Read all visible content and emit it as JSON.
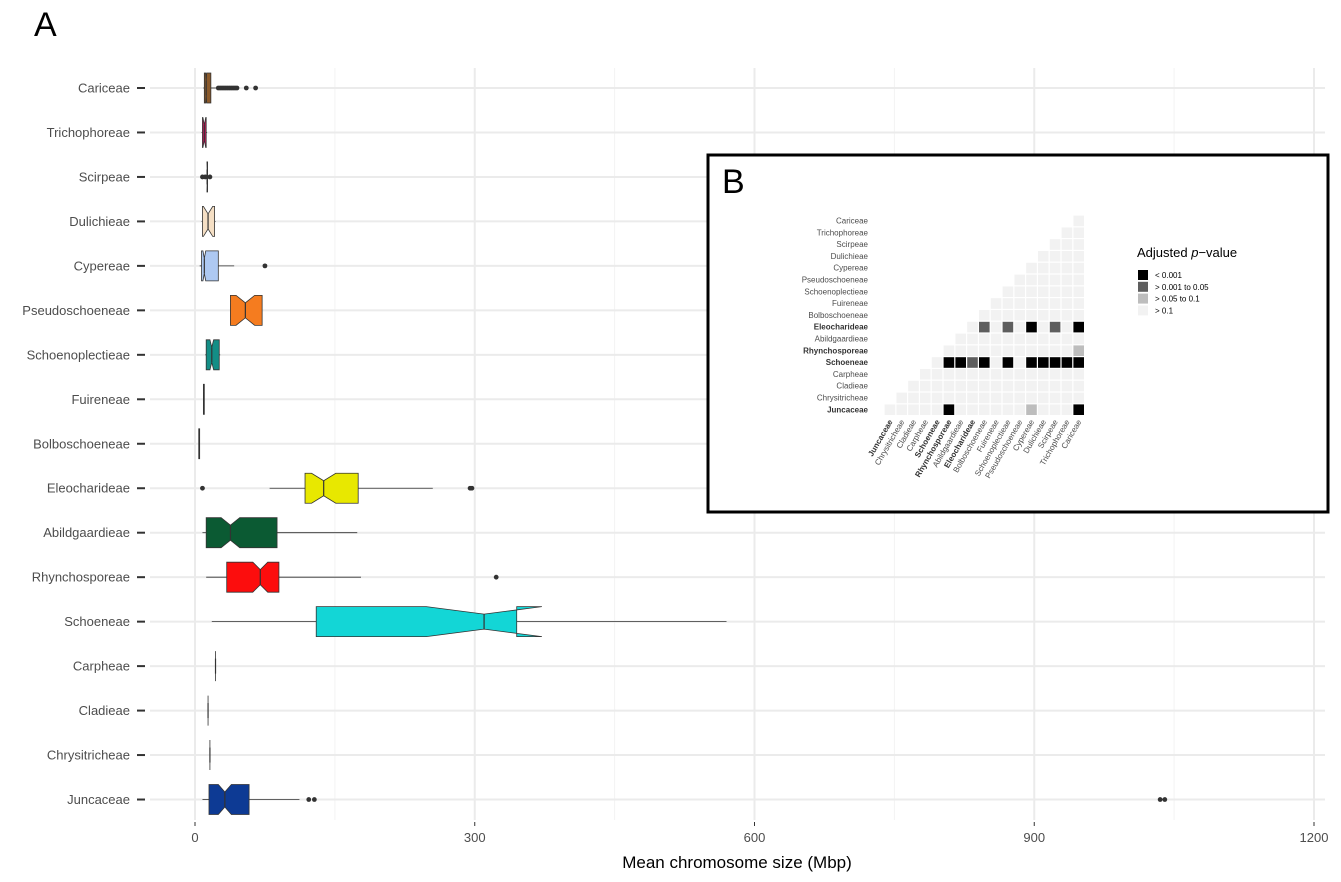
{
  "panel_a_label": "A",
  "panel_b_label": "B",
  "colors": {
    "grid": "#ebebeb",
    "sig_lt_0001": "#000000",
    "sig_0001_005": "#5e5e5e",
    "sig_005_01": "#bdbdbd",
    "sig_gt_01": "#f2f2f2"
  },
  "chart_data": [
    {
      "type": "boxplot",
      "orientation": "horizontal",
      "notched": true,
      "xlabel": "Mean chromosome size (Mbp)",
      "xlim": [
        0,
        1200
      ],
      "xticks": [
        0,
        300,
        600,
        900,
        1200
      ],
      "grid": true,
      "categories": [
        "Cariceae",
        "Trichophoreae",
        "Scirpeae",
        "Dulichieae",
        "Cypereae",
        "Pseudoschoeneae",
        "Schoenoplectieae",
        "Fuireneae",
        "Bolboschoeneae",
        "Eleocharideae",
        "Abildgaardieae",
        "Rhynchosporeae",
        "Schoeneae",
        "Carpheae",
        "Cladieae",
        "Chrysitricheae",
        "Juncaceae"
      ],
      "boxes": [
        {
          "name": "Cariceae",
          "color": "#8b5a2b",
          "min": 9,
          "q1": 10,
          "median": 12,
          "q3": 17,
          "max": 23,
          "notch": [
            11.5,
            12.5
          ],
          "outliers": [
            25,
            27,
            29,
            31,
            33,
            35,
            37,
            39,
            41,
            43,
            45,
            55,
            65
          ]
        },
        {
          "name": "Trichophoreae",
          "color": "#c2185b",
          "min": 7,
          "q1": 8,
          "median": 10,
          "q3": 12,
          "max": 13,
          "notch": [
            8.5,
            11.5
          ],
          "outliers": []
        },
        {
          "name": "Scirpeae",
          "color": "#cccccc",
          "min": 12,
          "q1": 13,
          "median": 13,
          "q3": 13.5,
          "max": 14,
          "notch": [
            12.8,
            13.2
          ],
          "outliers": [
            8,
            11,
            16
          ]
        },
        {
          "name": "Dulichieae",
          "color": "#f5dfc4",
          "min": 7,
          "q1": 8,
          "median": 14,
          "q3": 21,
          "max": 22,
          "notch": [
            9,
            19
          ],
          "outliers": []
        },
        {
          "name": "Cypereae",
          "color": "#aec9f2",
          "min": 5,
          "q1": 7,
          "median": 10,
          "q3": 25,
          "max": 42,
          "notch": [
            8.5,
            11.5
          ],
          "outliers": [
            75
          ]
        },
        {
          "name": "Pseudoschoeneae",
          "color": "#f57c1f",
          "min": 38,
          "q1": 38,
          "median": 54,
          "q3": 72,
          "max": 72,
          "notch": [
            44,
            64
          ],
          "outliers": []
        },
        {
          "name": "Schoenoplectieae",
          "color": "#138e86",
          "min": 11,
          "q1": 12,
          "median": 18,
          "q3": 26,
          "max": 27,
          "notch": [
            16,
            20
          ],
          "outliers": []
        },
        {
          "name": "Fuireneae",
          "color": "#cccccc",
          "min": 9,
          "q1": 9,
          "median": 9.5,
          "q3": 10,
          "max": 10,
          "notch": [
            9.3,
            9.7
          ],
          "outliers": []
        },
        {
          "name": "Bolboschoeneae",
          "color": "#cccccc",
          "min": 4,
          "q1": 4,
          "median": 4.5,
          "q3": 5,
          "max": 5,
          "notch": [
            4.3,
            4.7
          ],
          "outliers": []
        },
        {
          "name": "Eleocharideae",
          "color": "#e8e800",
          "min": 80,
          "q1": 118,
          "median": 138,
          "q3": 175,
          "max": 255,
          "notch": [
            125,
            151
          ],
          "outliers": [
            8,
            295,
            297
          ]
        },
        {
          "name": "Abildgaardieae",
          "color": "#0b5a33",
          "min": 8,
          "q1": 12,
          "median": 38,
          "q3": 88,
          "max": 174,
          "notch": [
            28,
            48
          ],
          "outliers": []
        },
        {
          "name": "Rhynchosporeae",
          "color": "#fc0d0d",
          "min": 12,
          "q1": 34,
          "median": 70,
          "q3": 90,
          "max": 178,
          "notch": [
            62,
            78
          ],
          "outliers": [
            323
          ]
        },
        {
          "name": "Schoeneae",
          "color": "#13d6d6",
          "min": 18,
          "q1": 130,
          "median": 310,
          "q3": 345,
          "max": 570,
          "notch": [
            248,
            372
          ],
          "outliers": []
        },
        {
          "name": "Carpheae",
          "color": "#cccccc",
          "min": 22,
          "q1": 22,
          "median": 22,
          "q3": 22,
          "max": 22,
          "notch": [
            22,
            22
          ],
          "outliers": []
        },
        {
          "name": "Cladieae",
          "color": "#cccccc",
          "min": 14,
          "q1": 14,
          "median": 14,
          "q3": 14,
          "max": 14,
          "notch": [
            14,
            14
          ],
          "outliers": []
        },
        {
          "name": "Chrysitricheae",
          "color": "#cccccc",
          "min": 16,
          "q1": 16,
          "median": 16,
          "q3": 16,
          "max": 16,
          "notch": [
            16,
            16
          ],
          "outliers": []
        },
        {
          "name": "Juncaceae",
          "color": "#0d3a94",
          "min": 8,
          "q1": 15,
          "median": 32,
          "q3": 58,
          "max": 112,
          "notch": [
            25,
            39
          ],
          "outliers": [
            122,
            128,
            1035,
            1040
          ]
        }
      ]
    },
    {
      "type": "heatmap",
      "row_labels": [
        "Cariceae",
        "Trichophoreae",
        "Scirpeae",
        "Dulichieae",
        "Cypereae",
        "Pseudoschoeneae",
        "Schoenoplectieae",
        "Fuireneae",
        "Bolboschoeneae",
        "Eleocharideae",
        "Abildgaardieae",
        "Rhynchosporeae",
        "Schoeneae",
        "Carpheae",
        "Cladieae",
        "Chrysitricheae",
        "Juncaceae"
      ],
      "column_labels": [
        "Juncaceae",
        "Chrysitricheae",
        "Cladieae",
        "Carpheae",
        "Schoeneae",
        "Rhynchosporeae",
        "Abildgaardieae",
        "Eleocharideae",
        "Bolboschoeneae",
        "Fuireneae",
        "Schoenoplectieae",
        "Pseudoschoeneae",
        "Cypereae",
        "Dulichieae",
        "Scirpeae",
        "Trichophoreae",
        "Cariceae"
      ],
      "bold_labels": [
        "Eleocharideae",
        "Rhynchosporeae",
        "Schoeneae",
        "Juncaceae"
      ],
      "legend_title_prefix": "Adjusted ",
      "legend_title_italic": "p",
      "legend_title_suffix": "−value",
      "legend": [
        "< 0.001",
        "> 0.001 to 0.05",
        "> 0.05 to 0.1",
        "> 0.1"
      ],
      "significant_cells": [
        {
          "row": "Eleocharideae",
          "col": "Bolboschoeneae",
          "level": 1
        },
        {
          "row": "Eleocharideae",
          "col": "Schoenoplectieae",
          "level": 1
        },
        {
          "row": "Eleocharideae",
          "col": "Cypereae",
          "level": 0
        },
        {
          "row": "Eleocharideae",
          "col": "Scirpeae",
          "level": 1
        },
        {
          "row": "Eleocharideae",
          "col": "Cariceae",
          "level": 0
        },
        {
          "row": "Rhynchosporeae",
          "col": "Cariceae",
          "level": 2
        },
        {
          "row": "Schoeneae",
          "col": "Rhynchosporeae",
          "level": 0
        },
        {
          "row": "Schoeneae",
          "col": "Abildgaardieae",
          "level": 0
        },
        {
          "row": "Schoeneae",
          "col": "Eleocharideae",
          "level": 1
        },
        {
          "row": "Schoeneae",
          "col": "Bolboschoeneae",
          "level": 0
        },
        {
          "row": "Schoeneae",
          "col": "Schoenoplectieae",
          "level": 0
        },
        {
          "row": "Schoeneae",
          "col": "Cypereae",
          "level": 0
        },
        {
          "row": "Schoeneae",
          "col": "Dulichieae",
          "level": 0
        },
        {
          "row": "Schoeneae",
          "col": "Scirpeae",
          "level": 0
        },
        {
          "row": "Schoeneae",
          "col": "Trichophoreae",
          "level": 0
        },
        {
          "row": "Schoeneae",
          "col": "Cariceae",
          "level": 0
        },
        {
          "row": "Juncaceae",
          "col": "Rhynchosporeae",
          "level": 0
        },
        {
          "row": "Juncaceae",
          "col": "Cypereae",
          "level": 2
        },
        {
          "row": "Juncaceae",
          "col": "Cariceae",
          "level": 0
        }
      ]
    }
  ]
}
